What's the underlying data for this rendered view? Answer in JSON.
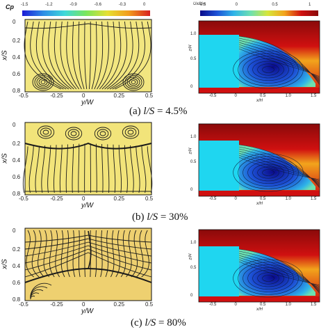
{
  "colorbars": {
    "cp": {
      "label": "Cp",
      "ticks": [
        "-1.5",
        "-1.2",
        "-0.9",
        "-0.6",
        "-0.3",
        "0"
      ],
      "colors": [
        "#1b1bd6",
        "#2e8ee6",
        "#3fd9d9",
        "#7be65c",
        "#e6e032",
        "#f29c1c",
        "#d82020"
      ]
    },
    "ux": {
      "label": "Ux/U∞",
      "ticks": [
        "-0.5",
        "0",
        "0.5",
        "1"
      ],
      "colors": [
        "#0a0a8a",
        "#1d52d6",
        "#2fb4e8",
        "#6ee0b0",
        "#d6e63a",
        "#f2a41c",
        "#d01010",
        "#8a0a0a"
      ]
    }
  },
  "panels": [
    {
      "caption_label": "(a)",
      "caption_var": "l/S",
      "caption_value": "= 4.5%",
      "surface_fill": "#f2e680",
      "surface": {
        "y_axis_label": "x/S",
        "x_axis_label": "y/W",
        "y_ticks": [
          "0",
          "0.2",
          "0.4",
          "0.6",
          "0.8"
        ],
        "x_ticks": [
          "-0.5",
          "-0.25",
          "0",
          "0.25",
          "0.5"
        ]
      },
      "field": {
        "y_axis_label": "z/H",
        "x_axis_label": "x/H",
        "y_ticks": [
          "1.0",
          "0.5",
          "0"
        ],
        "x_ticks": [
          "-0.5",
          "0",
          "0.5",
          "1.0",
          "1.5"
        ]
      }
    },
    {
      "caption_label": "(b)",
      "caption_var": "l/S",
      "caption_value": "= 30%",
      "surface_fill": "#f2e47a",
      "surface": {
        "y_axis_label": "x/S",
        "x_axis_label": "y/W",
        "y_ticks": [
          "0",
          "0.2",
          "0.4",
          "0.6",
          "0.8"
        ],
        "x_ticks": [
          "-0.5",
          "-0.25",
          "0",
          "0.25",
          "0.5"
        ]
      },
      "field": {
        "y_axis_label": "z/H",
        "x_axis_label": "x/H",
        "y_ticks": [
          "1.0",
          "0.5",
          "0"
        ],
        "x_ticks": [
          "-0.5",
          "0",
          "0.5",
          "1.0",
          "1.5"
        ]
      }
    },
    {
      "caption_label": "(c)",
      "caption_var": "l/S",
      "caption_value": "= 80%",
      "surface_fill": "#eed070",
      "surface": {
        "y_axis_label": "x/S",
        "x_axis_label": "y/W",
        "y_ticks": [
          "0",
          "0.2",
          "0.4",
          "0.6",
          "0.8"
        ],
        "x_ticks": [
          "-0.5",
          "-0.25",
          "0",
          "0.25",
          "0.5"
        ]
      },
      "field": {
        "y_axis_label": "z/H",
        "x_axis_label": "x/H",
        "y_ticks": [
          "1.0",
          "0.5",
          "0"
        ],
        "x_ticks": [
          "-0.5",
          "0",
          "0.5",
          "1.0",
          "1.5"
        ]
      }
    }
  ]
}
